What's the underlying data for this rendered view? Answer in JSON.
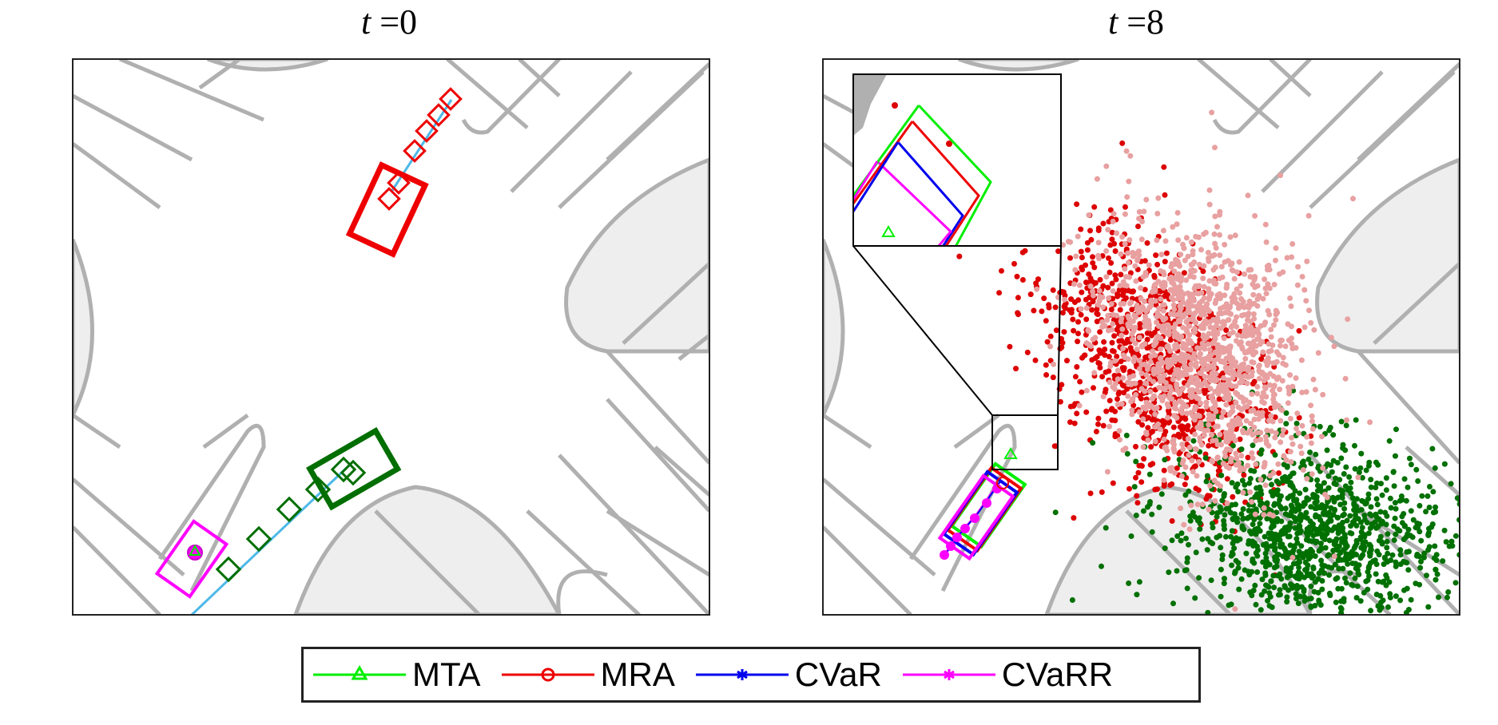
{
  "chart_data": [
    {
      "type": "scatter",
      "panel": "left",
      "title_var": "t",
      "title_eq": " =0",
      "title": "t =0",
      "series": [
        {
          "name": "MTA",
          "color": "#00ee00"
        },
        {
          "name": "MRA",
          "color": "#ee0000"
        },
        {
          "name": "CVaR",
          "color": "#0000ee"
        },
        {
          "name": "CVaRR",
          "color": "#ff00ff"
        }
      ]
    },
    {
      "type": "scatter",
      "panel": "right",
      "title_var": "t",
      "title_eq": " =8",
      "title": "t =8",
      "series": [
        {
          "name": "MTA",
          "color": "#00ee00"
        },
        {
          "name": "MRA",
          "color": "#ee0000"
        },
        {
          "name": "CVaR",
          "color": "#0000ee"
        },
        {
          "name": "CVaRR",
          "color": "#ff00ff"
        }
      ]
    }
  ],
  "legend": {
    "items": [
      {
        "label": "MTA",
        "color": "#00ee00",
        "marker": "triangle"
      },
      {
        "label": "MRA",
        "color": "#ee0000",
        "marker": "circle"
      },
      {
        "label": "CVaR",
        "color": "#0000ee",
        "marker": "asterisk"
      },
      {
        "label": "CVaRR",
        "color": "#ff00ff",
        "marker": "asterisk"
      }
    ]
  },
  "colors": {
    "road_line": "#b0b0b0",
    "ego_red": "#ee0000",
    "ego_green": "#006e00",
    "path_blue": "#4db8e8",
    "particles_red": "#dd0000",
    "particles_pink": "#e8a0a0",
    "particles_green": "#007000"
  }
}
